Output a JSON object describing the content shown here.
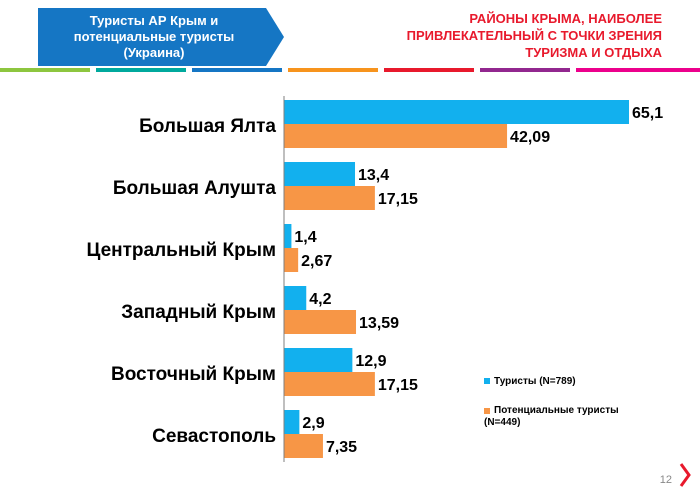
{
  "header": {
    "tag_lines": [
      "Туристы АР Крым и",
      "потенциальные туристы",
      "(Украина)"
    ],
    "title_lines": [
      "РАЙОНЫ КРЫМА, НАИБОЛЕЕ",
      "ПРИВЛЕКАТЕЛЬНЫЙ С ТОЧКИ ЗРЕНИЯ",
      "ТУРИЗМА И ОТДЫХА"
    ]
  },
  "colors": {
    "tag_bg": "#1576c4",
    "title": "#e8192c",
    "series_1": "#12b0ee",
    "series_2": "#f79646"
  },
  "chart_data": {
    "type": "bar",
    "orientation": "horizontal",
    "categories": [
      "Большая Ялта",
      "Большая Алушта",
      "Центральный Крым",
      "Западный Крым",
      "Восточный Крым",
      "Севастополь"
    ],
    "series": [
      {
        "name": "Туристы (N=789)",
        "values": [
          65.1,
          13.4,
          1.4,
          4.2,
          12.9,
          2.9
        ],
        "labels": [
          "65,1",
          "13,4",
          "1,4",
          "4,2",
          "12,9",
          "2,9"
        ]
      },
      {
        "name": "Потенциальные туристы (N=449)",
        "values": [
          42.09,
          17.15,
          2.67,
          13.59,
          17.15,
          7.35
        ],
        "labels": [
          "42,09",
          "17,15",
          "2,67",
          "13,59",
          "17,15",
          "7,35"
        ]
      }
    ],
    "xlim": [
      0,
      65.1
    ],
    "grid": false,
    "legend_position": "bottom-right"
  },
  "page_number": "12"
}
